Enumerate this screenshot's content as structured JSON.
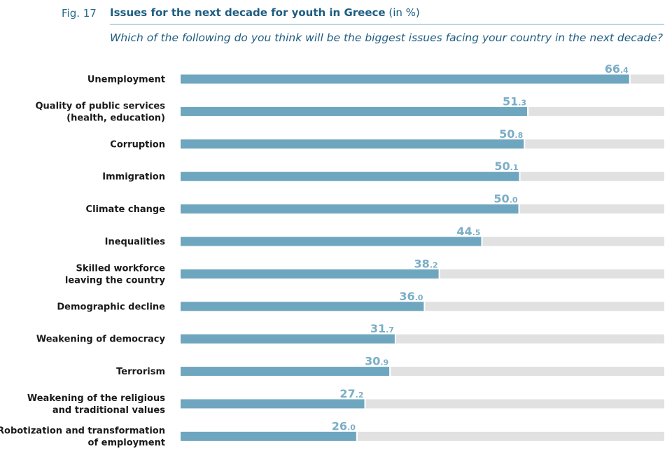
{
  "figure": {
    "label": "Fig. 17",
    "title": "Issues for the next decade for youth in Greece",
    "title_unit": "(in %)",
    "subtitle": "Which of the following do you think will be the biggest issues facing your country in the next decade?"
  },
  "chart_data": {
    "type": "bar",
    "orientation": "horizontal",
    "title": "Issues for the next decade for youth in Greece (in %)",
    "categories": [
      [
        "Unemployment"
      ],
      [
        "Quality of public services",
        "(health, education)"
      ],
      [
        "Corruption"
      ],
      [
        "Immigration"
      ],
      [
        "Climate change"
      ],
      [
        "Inequalities"
      ],
      [
        "Skilled workforce",
        "leaving the country"
      ],
      [
        "Demographic decline"
      ],
      [
        "Weakening of democracy"
      ],
      [
        "Terrorism"
      ],
      [
        "Weakening of the religious",
        "and traditional values"
      ],
      [
        "Robotization and transformation",
        "of employment"
      ]
    ],
    "values": [
      66.4,
      51.3,
      50.8,
      50.1,
      50.0,
      44.5,
      38.2,
      36.0,
      31.7,
      30.9,
      27.2,
      26.0
    ],
    "xlim": [
      0,
      71.6
    ],
    "colors": {
      "bar": "#6fa6bf",
      "track": "#e1e1e1",
      "value_label": "#7aaec6"
    },
    "grid": false,
    "legend": "none"
  }
}
